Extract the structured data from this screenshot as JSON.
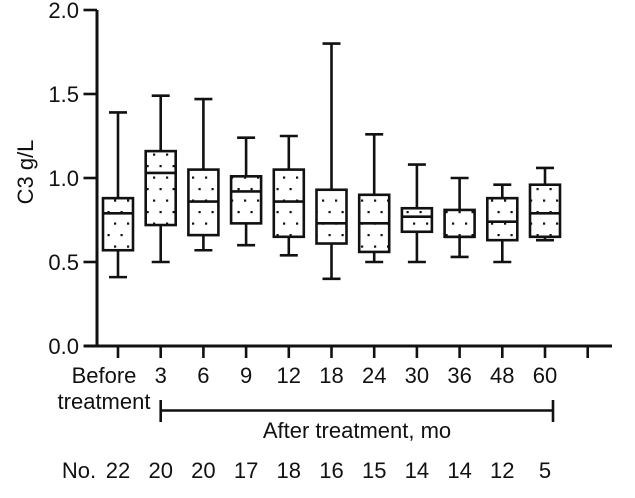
{
  "chart_data": {
    "type": "boxplot",
    "title": "",
    "ylabel": "C3 g/L",
    "ylim": [
      0,
      2.0
    ],
    "ytick_labels": [
      "0.0",
      "0.5",
      "1.0",
      "1.5",
      "2.0"
    ],
    "grid": false,
    "legend": "none",
    "categories": [
      "Before treatment",
      "3",
      "6",
      "9",
      "12",
      "18",
      "24",
      "30",
      "36",
      "48",
      "60"
    ],
    "x_group_label": "After treatment, mo",
    "x_group_span": [
      "3",
      "60"
    ],
    "n_row_label": "No.",
    "n_values": [
      22,
      20,
      20,
      17,
      18,
      16,
      15,
      14,
      14,
      12,
      5
    ],
    "boxes": [
      {
        "label": "Before treatment",
        "n": 22,
        "min": 0.41,
        "q1": 0.57,
        "median": 0.79,
        "q3": 0.88,
        "max": 1.39
      },
      {
        "label": "3",
        "n": 20,
        "min": 0.5,
        "q1": 0.72,
        "median": 1.03,
        "q3": 1.16,
        "max": 1.49
      },
      {
        "label": "6",
        "n": 20,
        "min": 0.57,
        "q1": 0.66,
        "median": 0.86,
        "q3": 1.05,
        "max": 1.47
      },
      {
        "label": "9",
        "n": 17,
        "min": 0.6,
        "q1": 0.73,
        "median": 0.92,
        "q3": 1.01,
        "max": 1.24
      },
      {
        "label": "12",
        "n": 18,
        "min": 0.54,
        "q1": 0.65,
        "median": 0.86,
        "q3": 1.05,
        "max": 1.25
      },
      {
        "label": "18",
        "n": 16,
        "min": 0.4,
        "q1": 0.61,
        "median": 0.73,
        "q3": 0.93,
        "max": 1.8
      },
      {
        "label": "24",
        "n": 15,
        "min": 0.5,
        "q1": 0.56,
        "median": 0.73,
        "q3": 0.9,
        "max": 1.26
      },
      {
        "label": "30",
        "n": 14,
        "min": 0.5,
        "q1": 0.68,
        "median": 0.77,
        "q3": 0.82,
        "max": 1.08
      },
      {
        "label": "36",
        "n": 14,
        "min": 0.53,
        "q1": 0.65,
        "median": 0.65,
        "q3": 0.81,
        "max": 1.0
      },
      {
        "label": "48",
        "n": 12,
        "min": 0.5,
        "q1": 0.63,
        "median": 0.74,
        "q3": 0.88,
        "max": 0.96
      },
      {
        "label": "60",
        "n": 5,
        "min": 0.63,
        "q1": 0.65,
        "median": 0.79,
        "q3": 0.96,
        "max": 1.06
      }
    ],
    "style": {
      "line_color": "#111111",
      "box_fill": "dotted-stipple",
      "background": "#ffffff"
    }
  }
}
